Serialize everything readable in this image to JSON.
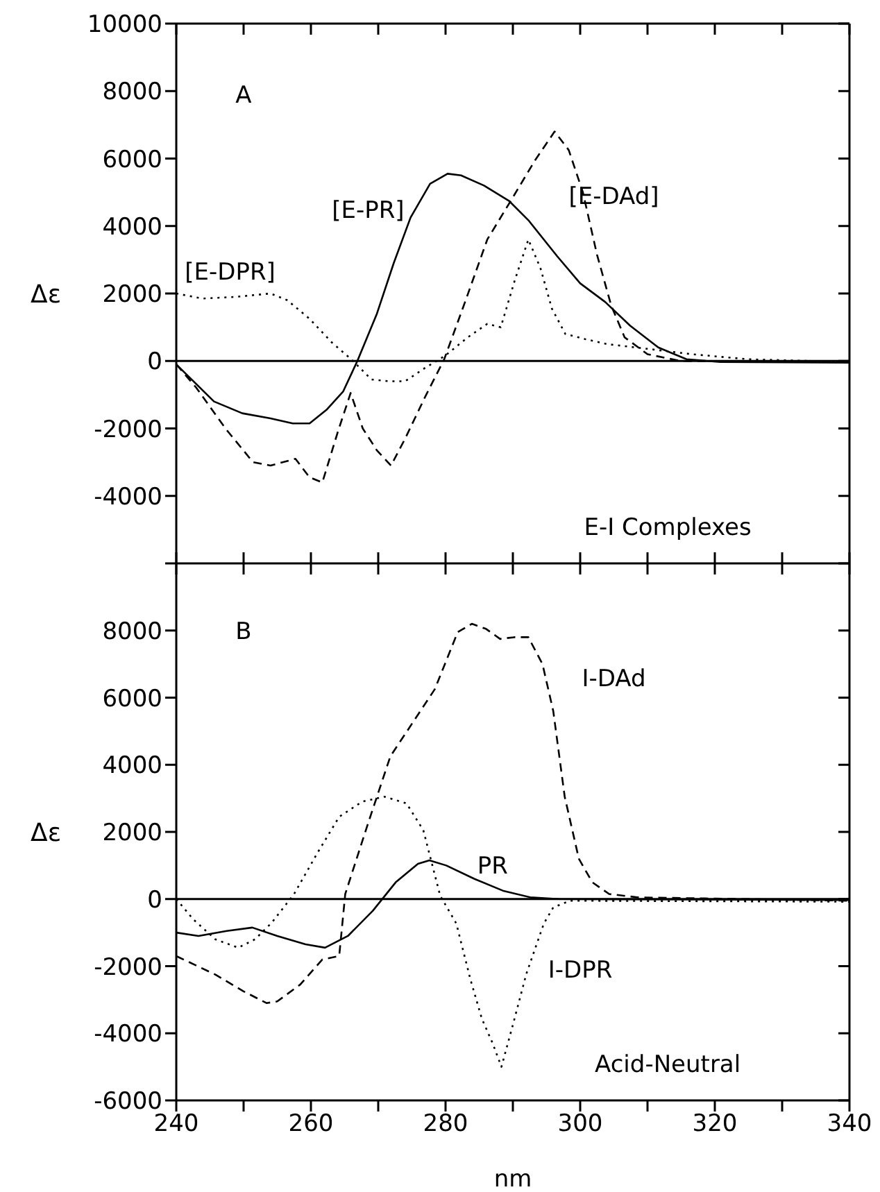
{
  "chart_data": [
    {
      "type": "line",
      "ylabel": "Δε",
      "annotations": [
        "A",
        "E-I Complexes"
      ],
      "xlim": [
        240,
        340
      ],
      "xticks": [
        240,
        {
          "value": 250,
          "label": null
        },
        260,
        {
          "value": 270,
          "label": null
        },
        280,
        {
          "value": 290,
          "label": null
        },
        300,
        {
          "value": 310,
          "label": null
        },
        320,
        {
          "value": 330,
          "label": null
        },
        340
      ],
      "ylim": [
        -6000,
        10000
      ],
      "yticks": [
        {
          "value": -6000,
          "label": null
        },
        -4000,
        -2000,
        0,
        2000,
        4000,
        6000,
        8000,
        10000
      ],
      "tick_labels": "y",
      "grid": false,
      "legend": false,
      "marker": "none",
      "ref_lines": [
        {
          "axis": "y",
          "value": 0,
          "color": "#000000"
        }
      ],
      "series": [
        {
          "name": "[E-PR]",
          "color": "#000000",
          "line_style": "solid",
          "x": [
            240,
            245.6,
            249.8,
            254,
            257.3,
            259.8,
            262.3,
            264.8,
            266.9,
            269.8,
            272.3,
            274.8,
            277.7,
            280.3,
            282.3,
            285.7,
            289.4,
            292.4,
            296.6,
            300,
            303.7,
            307.4,
            311.6,
            315.8,
            320.8,
            340
          ],
          "values": [
            -100,
            -1200,
            -1550,
            -1700,
            -1850,
            -1850,
            -1450,
            -900,
            0,
            1400,
            2900,
            4250,
            5250,
            5550,
            5500,
            5200,
            4750,
            4150,
            3100,
            2300,
            1750,
            1050,
            400,
            50,
            -30,
            -50
          ]
        },
        {
          "name": "[E-DAd]",
          "color": "#000000",
          "line_style": "dashed",
          "x": [
            240,
            243,
            247.3,
            251.4,
            254,
            257.7,
            259.8,
            261.7,
            264,
            265.9,
            267.7,
            269.8,
            271.9,
            274,
            277,
            279.8,
            282.9,
            286.2,
            290,
            293.3,
            296.2,
            298.3,
            300.4,
            302.5,
            304.6,
            306.6,
            310,
            314.9,
            340
          ],
          "values": [
            -100,
            -800,
            -2000,
            -3000,
            -3100,
            -2900,
            -3450,
            -3600,
            -2100,
            -950,
            -2000,
            -2650,
            -3100,
            -2300,
            -1050,
            50,
            1750,
            3600,
            4850,
            5950,
            6800,
            6250,
            5000,
            3150,
            1650,
            700,
            200,
            0,
            -30
          ]
        },
        {
          "name": "[E-DPR]",
          "color": "#000000",
          "line_style": "dotted",
          "x": [
            240,
            243.9,
            248.9,
            254,
            256.5,
            259.8,
            263.1,
            266,
            269,
            271.5,
            274,
            277,
            279.9,
            283.3,
            286.2,
            288.2,
            290.3,
            292.3,
            294.1,
            295.8,
            297.8,
            300.7,
            304,
            308.3,
            316.6,
            325,
            340
          ],
          "values": [
            2000,
            1850,
            1900,
            2000,
            1800,
            1250,
            550,
            50,
            -550,
            -600,
            -600,
            -200,
            150,
            700,
            1100,
            1000,
            2400,
            3600,
            2750,
            1550,
            800,
            650,
            500,
            400,
            200,
            50,
            -30
          ]
        }
      ]
    },
    {
      "type": "line",
      "ylabel": "Δε",
      "xlabel": "nm",
      "annotations": [
        "B",
        "Acid-Neutral"
      ],
      "xlim": [
        240,
        340
      ],
      "xticks": [
        240,
        {
          "value": 250,
          "label": null
        },
        260,
        {
          "value": 270,
          "label": null
        },
        280,
        {
          "value": 290,
          "label": null
        },
        300,
        {
          "value": 310,
          "label": null
        },
        320,
        {
          "value": 330,
          "label": null
        },
        340
      ],
      "ylim": [
        -6000,
        10000
      ],
      "yticks": [
        -6000,
        -4000,
        -2000,
        0,
        2000,
        4000,
        6000,
        8000,
        {
          "value": 10000,
          "label": null
        }
      ],
      "grid": false,
      "legend": false,
      "marker": "none",
      "ref_lines": [
        {
          "axis": "y",
          "value": 0,
          "color": "#000000"
        }
      ],
      "series": [
        {
          "name": "PR",
          "color": "#000000",
          "line_style": "solid",
          "x": [
            240,
            243.3,
            247.5,
            251.3,
            255,
            259.2,
            262.1,
            265.5,
            269.2,
            272.6,
            275.9,
            277.6,
            280.1,
            284.3,
            288.5,
            292.6,
            296.8,
            340
          ],
          "values": [
            -1000,
            -1100,
            -950,
            -850,
            -1100,
            -1350,
            -1450,
            -1100,
            -350,
            500,
            1050,
            1150,
            1000,
            600,
            250,
            50,
            0,
            -30
          ]
        },
        {
          "name": "I-DAd",
          "color": "#000000",
          "line_style": "dashed",
          "x": [
            240,
            245.8,
            250,
            253.4,
            255,
            258.4,
            261.7,
            264.2,
            265.1,
            268.4,
            271.8,
            275.1,
            278.4,
            281.8,
            283.9,
            286,
            288.1,
            290.2,
            292.3,
            294.4,
            296,
            297.7,
            299.8,
            301.8,
            304.3,
            308.5,
            340
          ],
          "values": [
            -1700,
            -2250,
            -2750,
            -3100,
            -3050,
            -2550,
            -1800,
            -1700,
            150,
            2200,
            4250,
            5250,
            6250,
            7950,
            8200,
            8050,
            7750,
            7800,
            7800,
            7000,
            5600,
            3050,
            1200,
            500,
            150,
            50,
            -50
          ]
        },
        {
          "name": "I-DPR",
          "color": "#000000",
          "line_style": "dotted",
          "x": [
            240,
            242.5,
            245.8,
            249.2,
            251.7,
            254.2,
            257.5,
            260.9,
            264.2,
            267.6,
            270.9,
            274.2,
            276.7,
            279.2,
            281.6,
            283.7,
            285.4,
            287,
            288.3,
            290,
            292,
            294.6,
            296,
            298.5,
            340
          ],
          "values": [
            0,
            -600,
            -1200,
            -1450,
            -1200,
            -700,
            150,
            1350,
            2450,
            2900,
            3050,
            2850,
            2050,
            100,
            -730,
            -2400,
            -3570,
            -4300,
            -5000,
            -3750,
            -2230,
            -730,
            -250,
            -50,
            -80
          ]
        }
      ]
    }
  ]
}
